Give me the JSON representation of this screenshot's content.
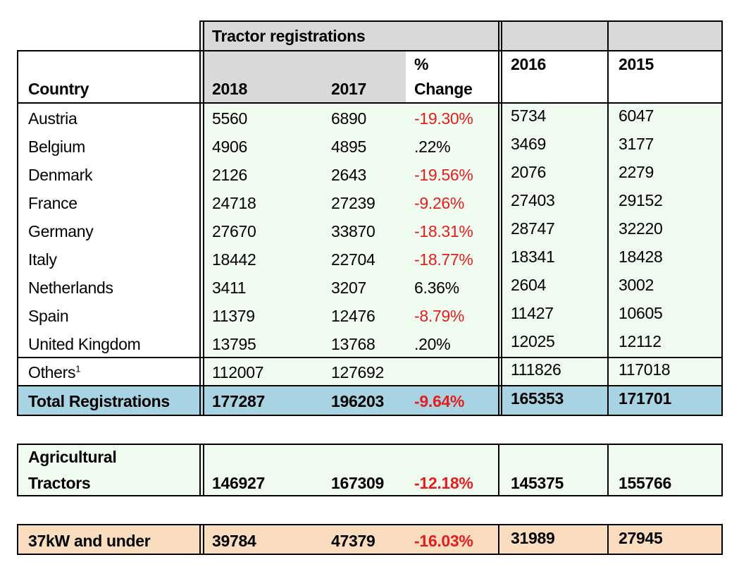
{
  "header": {
    "group_title": "Tractor registrations",
    "country": "Country",
    "y2018": "2018",
    "y2017": "2017",
    "change_line1": "%",
    "change_line2": "Change",
    "y2016": "2016",
    "y2015": "2015"
  },
  "rows": [
    {
      "country": "Austria",
      "y2018": "5560",
      "y2017": "6890",
      "change": "-19.30%",
      "neg": true,
      "y2016": "5734",
      "y2015": "6047"
    },
    {
      "country": "Belgium",
      "y2018": "4906",
      "y2017": "4895",
      "change": ".22%",
      "neg": false,
      "y2016": "3469",
      "y2015": "3177"
    },
    {
      "country": "Denmark",
      "y2018": "2126",
      "y2017": "2643",
      "change": "-19.56%",
      "neg": true,
      "y2016": "2076",
      "y2015": "2279"
    },
    {
      "country": "France",
      "y2018": "24718",
      "y2017": "27239",
      "change": "-9.26%",
      "neg": true,
      "y2016": "27403",
      "y2015": "29152"
    },
    {
      "country": "Germany",
      "y2018": "27670",
      "y2017": "33870",
      "change": "-18.31%",
      "neg": true,
      "y2016": "28747",
      "y2015": "32220"
    },
    {
      "country": "Italy",
      "y2018": "18442",
      "y2017": "22704",
      "change": "-18.77%",
      "neg": true,
      "y2016": "18341",
      "y2015": "18428"
    },
    {
      "country": "Netherlands",
      "y2018": "3411",
      "y2017": "3207",
      "change": "6.36%",
      "neg": false,
      "y2016": "2604",
      "y2015": "3002"
    },
    {
      "country": "Spain",
      "y2018": "11379",
      "y2017": "12476",
      "change": "-8.79%",
      "neg": true,
      "y2016": "11427",
      "y2015": "10605"
    },
    {
      "country": "United Kingdom",
      "y2018": "13795",
      "y2017": "13768",
      "change": ".20%",
      "neg": false,
      "y2016": "12025",
      "y2015": "12112"
    }
  ],
  "others": {
    "country": "Others",
    "footnote": "1",
    "y2018": "112007",
    "y2017": "127692",
    "y2016": "111826",
    "y2015": "117018"
  },
  "total": {
    "label": "Total Registrations",
    "y2018": "177287",
    "y2017": "196203",
    "change": "-9.64%",
    "y2016": "165353",
    "y2015": "171701"
  },
  "agricultural": {
    "label_line1": "Agricultural",
    "label_line2": "Tractors",
    "y2018": "146927",
    "y2017": "167309",
    "change": "-12.18%",
    "y2016": "145375",
    "y2015": "155766"
  },
  "small": {
    "label": "37kW and under",
    "y2018": "39784",
    "y2017": "47379",
    "change": "-16.03%",
    "y2016": "31989",
    "y2015": "27945"
  },
  "colors": {
    "header_grey": "#d9d9d9",
    "light_green": "#f0fbf0",
    "total_blue": "#a8d3e3",
    "orange": "#fadcbf",
    "negative": "#e41e1e"
  }
}
